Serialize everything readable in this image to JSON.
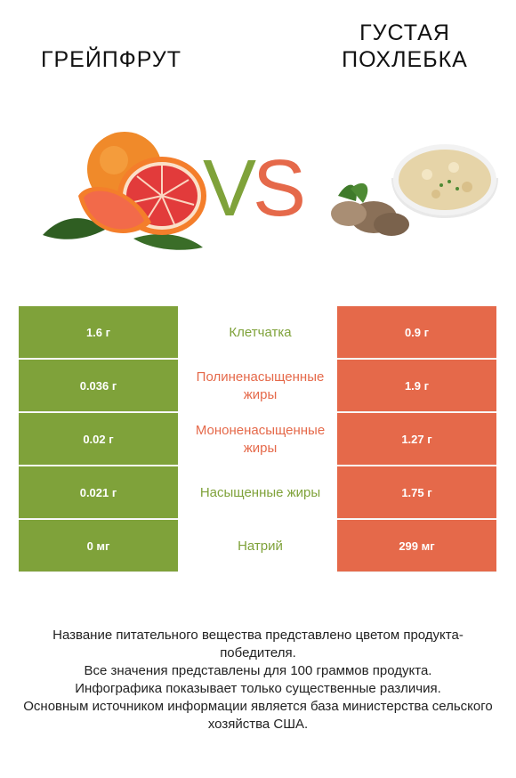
{
  "products": {
    "left": {
      "name": "Грейпфрут",
      "color": "#7fa23a",
      "image_icon": "grapefruit-icon"
    },
    "right": {
      "name": "Густая похлебка",
      "color": "#e5694a",
      "image_icon": "clam-chowder-icon"
    }
  },
  "vs": {
    "v": "V",
    "s": "S"
  },
  "rows": [
    {
      "left": "1.6 г",
      "nutrient": "Клетчатка",
      "right": "0.9 г",
      "winner": "left"
    },
    {
      "left": "0.036 г",
      "nutrient": "Полиненасыщенные жиры",
      "right": "1.9 г",
      "winner": "right"
    },
    {
      "left": "0.02 г",
      "nutrient": "Мононенасыщенные жиры",
      "right": "1.27 г",
      "winner": "right"
    },
    {
      "left": "0.021 г",
      "nutrient": "Насыщенные жиры",
      "right": "1.75 г",
      "winner": "left"
    },
    {
      "left": "0 мг",
      "nutrient": "Натрий",
      "right": "299 мг",
      "winner": "left"
    }
  ],
  "footer": {
    "line1": "Название питательного вещества представлено цветом продукта-победителя.",
    "line2": "Все значения представлены для 100 граммов продукта.",
    "line3": "Инфографика показывает только существенные различия.",
    "line4": "Основным источником информации является база министерства сельского хозяйства США."
  }
}
